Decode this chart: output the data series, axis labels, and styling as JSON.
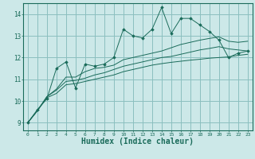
{
  "bg_color": "#cce8e8",
  "grid_color": "#8bbfbf",
  "line_color": "#1a6b5a",
  "marker_color": "#1a6b5a",
  "xlabel": "Humidex (Indice chaleur)",
  "xlabel_fontsize": 7,
  "ylabel_ticks": [
    9,
    10,
    11,
    12,
    13,
    14
  ],
  "xlim": [
    -0.5,
    23.5
  ],
  "ylim": [
    8.65,
    14.5
  ],
  "xticks": [
    0,
    1,
    2,
    3,
    4,
    5,
    6,
    7,
    8,
    9,
    10,
    11,
    12,
    13,
    14,
    15,
    16,
    17,
    18,
    19,
    20,
    21,
    22,
    23
  ],
  "curve1_x": [
    0,
    1,
    2,
    3,
    4,
    5,
    6,
    7,
    8,
    9,
    10,
    11,
    12,
    13,
    14,
    15,
    16,
    17,
    18,
    19,
    20,
    21,
    22,
    23
  ],
  "curve1_y": [
    9.0,
    9.6,
    10.1,
    11.5,
    11.8,
    10.6,
    11.7,
    11.6,
    11.7,
    12.0,
    13.3,
    13.0,
    12.9,
    13.3,
    14.3,
    13.1,
    13.8,
    13.8,
    13.5,
    13.2,
    12.8,
    12.0,
    12.2,
    12.3
  ],
  "curve2_x": [
    0,
    1,
    2,
    3,
    4,
    5,
    6,
    7,
    8,
    9,
    10,
    11,
    12,
    13,
    14,
    15,
    16,
    17,
    18,
    19,
    20,
    21,
    22,
    23
  ],
  "curve2_y": [
    9.0,
    9.55,
    10.15,
    10.35,
    10.75,
    10.8,
    10.9,
    11.0,
    11.1,
    11.2,
    11.35,
    11.45,
    11.55,
    11.65,
    11.72,
    11.78,
    11.83,
    11.88,
    11.92,
    11.97,
    12.0,
    12.03,
    12.1,
    12.15
  ],
  "curve3_x": [
    0,
    1,
    2,
    3,
    4,
    5,
    6,
    7,
    8,
    9,
    10,
    11,
    12,
    13,
    14,
    15,
    16,
    17,
    18,
    19,
    20,
    21,
    22,
    23
  ],
  "curve3_y": [
    9.0,
    9.55,
    10.2,
    10.5,
    10.9,
    10.95,
    11.05,
    11.2,
    11.3,
    11.45,
    11.6,
    11.7,
    11.8,
    11.9,
    12.0,
    12.05,
    12.15,
    12.25,
    12.35,
    12.42,
    12.5,
    12.4,
    12.35,
    12.3
  ],
  "curve4_x": [
    0,
    1,
    2,
    3,
    4,
    5,
    6,
    7,
    8,
    9,
    10,
    11,
    12,
    13,
    14,
    15,
    16,
    17,
    18,
    19,
    20,
    21,
    22,
    23
  ],
  "curve4_y": [
    9.0,
    9.55,
    10.2,
    10.55,
    11.1,
    11.1,
    11.35,
    11.5,
    11.55,
    11.65,
    11.9,
    12.0,
    12.1,
    12.2,
    12.3,
    12.45,
    12.6,
    12.7,
    12.8,
    12.88,
    12.95,
    12.75,
    12.7,
    12.75
  ]
}
